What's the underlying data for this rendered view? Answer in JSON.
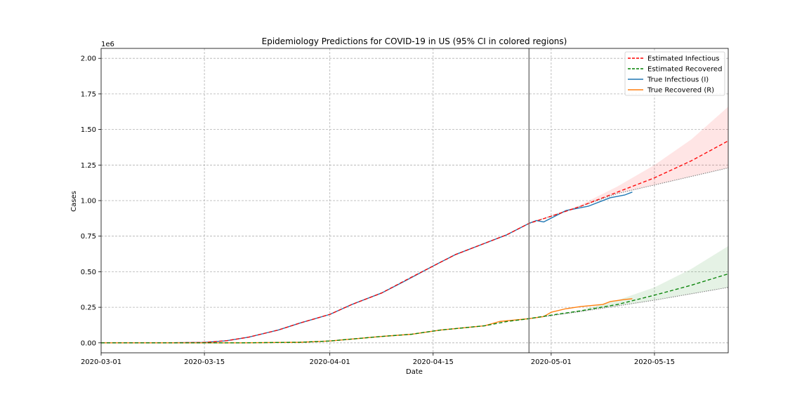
{
  "chart_data": {
    "type": "line",
    "title": "Epidemiology Predictions for COVID-19 in US (95% CI in colored regions)",
    "xlabel": "Date",
    "ylabel": "Cases",
    "y_offset_label": "1e6",
    "xlim": [
      "2020-03-01",
      "2020-05-25"
    ],
    "ylim": [
      -0.07,
      2.07
    ],
    "x_ticks": [
      "2020-03-01",
      "2020-03-15",
      "2020-04-01",
      "2020-04-15",
      "2020-05-01",
      "2020-05-15"
    ],
    "y_ticks": [
      0.0,
      0.25,
      0.5,
      0.75,
      1.0,
      1.25,
      1.5,
      1.75,
      2.0
    ],
    "y_tick_labels": [
      "0.00",
      "0.25",
      "0.50",
      "0.75",
      "1.00",
      "1.25",
      "1.50",
      "1.75",
      "2.00"
    ],
    "grid": true,
    "legend_position": "top-right",
    "vertical_marker_date": "2020-04-28",
    "series": [
      {
        "name": "Estimated Infectious",
        "color": "#ff0000",
        "style": "dashed",
        "x": [
          "2020-03-01",
          "2020-03-10",
          "2020-03-15",
          "2020-03-18",
          "2020-03-21",
          "2020-03-25",
          "2020-03-28",
          "2020-04-01",
          "2020-04-04",
          "2020-04-08",
          "2020-04-12",
          "2020-04-15",
          "2020-04-18",
          "2020-04-22",
          "2020-04-25",
          "2020-04-28",
          "2020-05-01",
          "2020-05-05",
          "2020-05-10",
          "2020-05-15",
          "2020-05-20",
          "2020-05-25"
        ],
        "y": [
          0.0,
          0.0,
          0.003,
          0.015,
          0.04,
          0.09,
          0.14,
          0.2,
          0.27,
          0.35,
          0.46,
          0.54,
          0.62,
          0.7,
          0.76,
          0.84,
          0.89,
          0.96,
          1.06,
          1.16,
          1.28,
          1.42
        ]
      },
      {
        "name": "Estimated Recovered",
        "color": "#008000",
        "style": "dashed",
        "x": [
          "2020-03-01",
          "2020-03-20",
          "2020-03-28",
          "2020-04-01",
          "2020-04-08",
          "2020-04-12",
          "2020-04-16",
          "2020-04-22",
          "2020-04-25",
          "2020-04-28",
          "2020-05-01",
          "2020-05-05",
          "2020-05-10",
          "2020-05-15",
          "2020-05-20",
          "2020-05-25"
        ],
        "y": [
          0.0,
          0.0,
          0.004,
          0.013,
          0.045,
          0.06,
          0.09,
          0.12,
          0.15,
          0.17,
          0.195,
          0.225,
          0.27,
          0.335,
          0.405,
          0.485
        ]
      },
      {
        "name": "True Infectious (I)",
        "color": "#1f77b4",
        "style": "solid",
        "x": [
          "2020-03-01",
          "2020-03-10",
          "2020-03-15",
          "2020-03-18",
          "2020-03-21",
          "2020-03-25",
          "2020-03-28",
          "2020-04-01",
          "2020-04-04",
          "2020-04-08",
          "2020-04-11",
          "2020-04-15",
          "2020-04-18",
          "2020-04-22",
          "2020-04-25",
          "2020-04-28",
          "2020-04-29",
          "2020-04-30",
          "2020-05-03",
          "2020-05-06",
          "2020-05-09",
          "2020-05-11",
          "2020-05-12"
        ],
        "y": [
          0.0,
          0.0,
          0.003,
          0.015,
          0.04,
          0.09,
          0.14,
          0.2,
          0.27,
          0.35,
          0.43,
          0.54,
          0.62,
          0.7,
          0.76,
          0.84,
          0.86,
          0.85,
          0.93,
          0.96,
          1.02,
          1.04,
          1.06
        ]
      },
      {
        "name": "True Recovered (R)",
        "color": "#ff7f0e",
        "style": "solid",
        "x": [
          "2020-03-01",
          "2020-03-20",
          "2020-03-28",
          "2020-04-01",
          "2020-04-08",
          "2020-04-12",
          "2020-04-16",
          "2020-04-22",
          "2020-04-24",
          "2020-04-28",
          "2020-04-30",
          "2020-05-01",
          "2020-05-03",
          "2020-05-05",
          "2020-05-08",
          "2020-05-09",
          "2020-05-11",
          "2020-05-12"
        ],
        "y": [
          0.0,
          0.0,
          0.004,
          0.013,
          0.045,
          0.06,
          0.09,
          0.12,
          0.15,
          0.17,
          0.185,
          0.215,
          0.24,
          0.255,
          0.27,
          0.29,
          0.305,
          0.31
        ]
      }
    ],
    "confidence_bands": [
      {
        "series": "Estimated Infectious",
        "color": "#ff0000",
        "x": [
          "2020-04-28",
          "2020-05-05",
          "2020-05-10",
          "2020-05-15",
          "2020-05-20",
          "2020-05-25"
        ],
        "lower": [
          0.84,
          0.96,
          1.05,
          1.11,
          1.17,
          1.23
        ],
        "upper": [
          0.84,
          0.97,
          1.1,
          1.25,
          1.43,
          1.66
        ]
      },
      {
        "series": "Estimated Recovered",
        "color": "#008000",
        "x": [
          "2020-04-28",
          "2020-05-05",
          "2020-05-10",
          "2020-05-15",
          "2020-05-20",
          "2020-05-25"
        ],
        "lower": [
          0.17,
          0.22,
          0.26,
          0.3,
          0.345,
          0.39
        ],
        "upper": [
          0.17,
          0.23,
          0.3,
          0.39,
          0.52,
          0.68
        ]
      }
    ]
  }
}
